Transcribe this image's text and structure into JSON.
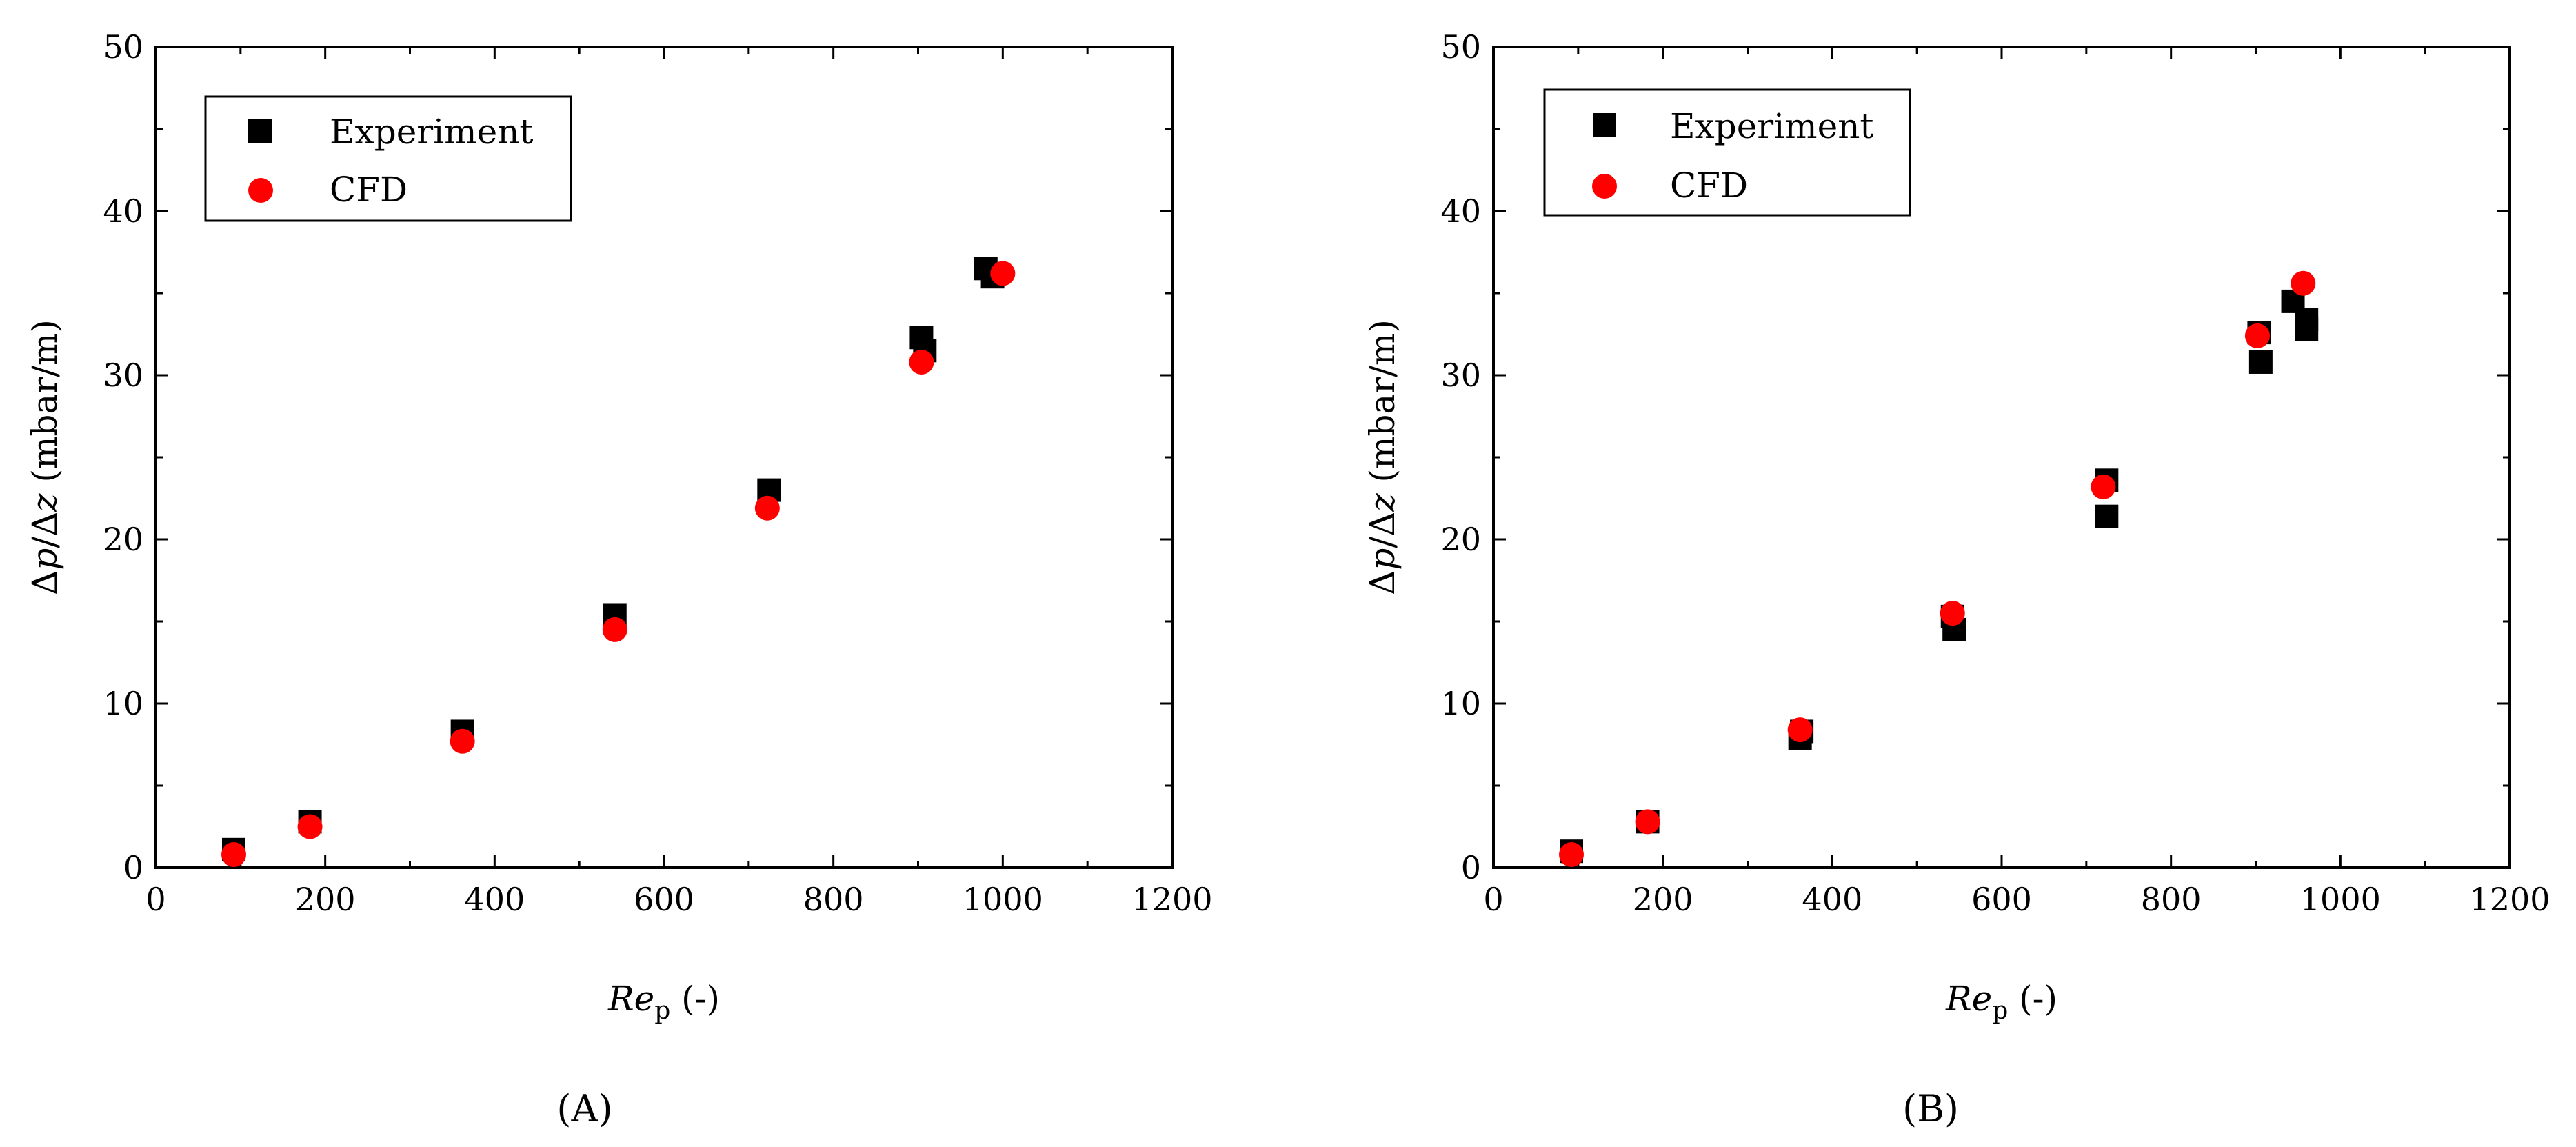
{
  "chart_data": [
    {
      "type": "scatter",
      "panel_label": "(A)",
      "xlabel": {
        "main": "Re",
        "sub": "p",
        "units": " (-)"
      },
      "ylabel": {
        "delta1": "Δ",
        "var1": "p",
        "slash": "/",
        "delta2": "Δ",
        "var2": "z",
        "units": " (mbar/m)"
      },
      "xlim": [
        0,
        1200
      ],
      "ylim": [
        0,
        50
      ],
      "xticks": [
        0,
        200,
        400,
        600,
        800,
        1000,
        1200
      ],
      "yticks": [
        0,
        10,
        20,
        30,
        40,
        50
      ],
      "legend_position": "top-left",
      "series": [
        {
          "name": "Experiment",
          "marker": "square",
          "color": "#000000",
          "points": [
            [
              92,
              1.1
            ],
            [
              182,
              2.8
            ],
            [
              362,
              8.3
            ],
            [
              542,
              15.4
            ],
            [
              724,
              23.0
            ],
            [
              904,
              32.3
            ],
            [
              908,
              31.5
            ],
            [
              980,
              36.5
            ],
            [
              988,
              36.0
            ]
          ]
        },
        {
          "name": "CFD",
          "marker": "circle",
          "color": "#ff0000",
          "points": [
            [
              92,
              0.8
            ],
            [
              182,
              2.5
            ],
            [
              362,
              7.7
            ],
            [
              542,
              14.5
            ],
            [
              722,
              21.9
            ],
            [
              904,
              30.8
            ],
            [
              1000,
              36.2
            ]
          ]
        }
      ]
    },
    {
      "type": "scatter",
      "panel_label": "(B)",
      "xlabel": {
        "main": "Re",
        "sub": "p",
        "units": " (-)"
      },
      "ylabel": {
        "delta1": "Δ",
        "var1": "p",
        "slash": "/",
        "delta2": "Δ",
        "var2": "z",
        "units": " (mbar/m)"
      },
      "xlim": [
        0,
        1200
      ],
      "ylim": [
        0,
        50
      ],
      "xticks": [
        0,
        200,
        400,
        600,
        800,
        1000,
        1200
      ],
      "yticks": [
        0,
        10,
        20,
        30,
        40,
        50
      ],
      "legend_position": "top-left",
      "series": [
        {
          "name": "Experiment",
          "marker": "square",
          "color": "#000000",
          "points": [
            [
              92,
              1.0
            ],
            [
              182,
              2.8
            ],
            [
              362,
              7.9
            ],
            [
              364,
              8.3
            ],
            [
              542,
              15.3
            ],
            [
              544,
              14.5
            ],
            [
              724,
              23.6
            ],
            [
              724,
              21.4
            ],
            [
              904,
              32.6
            ],
            [
              906,
              30.8
            ],
            [
              944,
              34.5
            ],
            [
              960,
              33.4
            ],
            [
              960,
              32.8
            ]
          ]
        },
        {
          "name": "CFD",
          "marker": "circle",
          "color": "#ff0000",
          "points": [
            [
              92,
              0.8
            ],
            [
              182,
              2.8
            ],
            [
              362,
              8.4
            ],
            [
              542,
              15.5
            ],
            [
              720,
              23.2
            ],
            [
              902,
              32.4
            ],
            [
              956,
              35.6
            ]
          ]
        }
      ]
    }
  ]
}
